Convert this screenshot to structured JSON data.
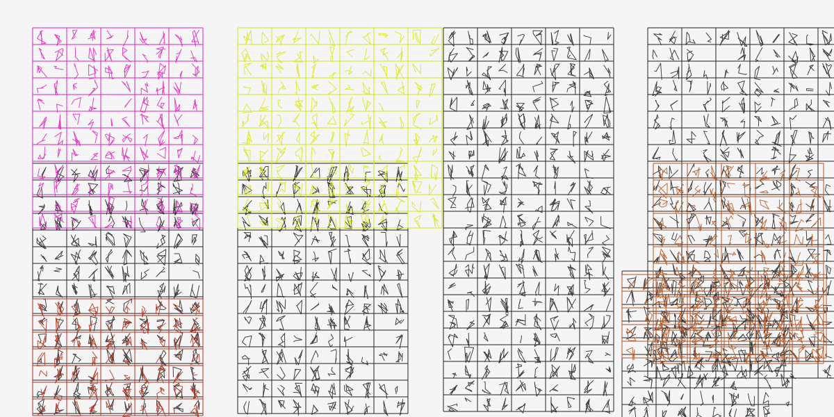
{
  "palette": {
    "background": "#f5f5f5",
    "black": "#222222",
    "magenta": "#e020c0",
    "yellow": "#d8e81a",
    "dark_red": "#b0301a",
    "orange_brown": "#b5541e"
  },
  "grids": [
    {
      "name": "black-grid-1",
      "color": "black"
    },
    {
      "name": "black-grid-2",
      "color": "black"
    },
    {
      "name": "black-grid-3",
      "color": "black"
    },
    {
      "name": "black-grid-4",
      "color": "black"
    },
    {
      "name": "black-grid-5",
      "color": "black"
    },
    {
      "name": "magenta-grid",
      "color": "magenta"
    },
    {
      "name": "yellow-grid",
      "color": "yellow"
    },
    {
      "name": "dark-red-grid",
      "color": "dark_red"
    },
    {
      "name": "orange-grid-1",
      "color": "orange_brown"
    },
    {
      "name": "orange-grid-2",
      "color": "orange_brown"
    }
  ]
}
